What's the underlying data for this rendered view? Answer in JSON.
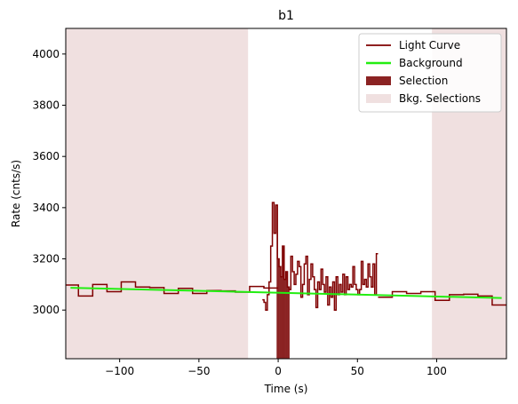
{
  "chart_data": {
    "type": "line",
    "title": "b1",
    "xlabel": "Time (s)",
    "ylabel": "Rate (cnts/s)",
    "xlim": [
      -134,
      144
    ],
    "ylim": [
      2810,
      4100
    ],
    "xticks": [
      -100,
      -50,
      0,
      50,
      100
    ],
    "yticks": [
      3000,
      3200,
      3400,
      3600,
      3800,
      4000
    ],
    "grid": false,
    "legend_position": "top-right",
    "colors": {
      "light_curve": "#7f0000",
      "background": "#22ee11",
      "selection": "#8b2323",
      "bkg_selection": "#f0e0e0"
    },
    "legend": [
      {
        "key": "light_curve",
        "label": "Light Curve",
        "style": "line"
      },
      {
        "key": "background",
        "label": "Background",
        "style": "line"
      },
      {
        "key": "selection",
        "label": "Selection",
        "style": "patch"
      },
      {
        "key": "bkg_selection",
        "label": "Bkg. Selections",
        "style": "patch"
      }
    ],
    "bkg_selections": [
      [
        -134,
        -19
      ],
      [
        97,
        144
      ]
    ],
    "selection": [
      [
        -1,
        7
      ]
    ],
    "background_line": {
      "x": [
        -131,
        141
      ],
      "y": [
        3087,
        3047
      ]
    },
    "light_curve": {
      "steps": [
        [
          -134,
          3098
        ],
        [
          -126,
          3055
        ],
        [
          -117,
          3100
        ],
        [
          -108,
          3072
        ],
        [
          -99,
          3110
        ],
        [
          -90,
          3090
        ],
        [
          -81,
          3088
        ],
        [
          -72,
          3065
        ],
        [
          -63,
          3085
        ],
        [
          -54,
          3065
        ],
        [
          -45,
          3076
        ],
        [
          -36,
          3075
        ],
        [
          -27,
          3070
        ],
        [
          -18,
          3092
        ],
        [
          -9,
          3086
        ],
        [
          0,
          3086
        ]
      ],
      "fine": {
        "start": -10,
        "values": [
          3040,
          3030,
          3000,
          3060,
          3110,
          3250,
          3420,
          3300,
          3410,
          3200,
          3170,
          3130,
          3250,
          3120,
          3150,
          3090,
          3080,
          3210,
          3150,
          3100,
          3140,
          3190,
          3170,
          3050,
          3100,
          3180,
          3210,
          3060,
          3120,
          3180,
          3130,
          3080,
          3010,
          3110,
          3080,
          3160,
          3100,
          3070,
          3130,
          3020,
          3090,
          3050,
          3110,
          3000,
          3130,
          3060,
          3100,
          3070,
          3140,
          3060,
          3130,
          3080,
          3100,
          3090,
          3170,
          3100,
          3080,
          3060,
          3080,
          3190,
          3100,
          3120,
          3090,
          3180,
          3130,
          3090,
          3180,
          3060,
          3220
        ],
        "end": 63
      },
      "tail_steps": [
        [
          63,
          3050
        ],
        [
          72,
          3072
        ],
        [
          81,
          3065
        ],
        [
          90,
          3072
        ],
        [
          99,
          3038
        ],
        [
          108,
          3060
        ],
        [
          117,
          3062
        ],
        [
          126,
          3055
        ],
        [
          135,
          3020
        ],
        [
          144,
          3020
        ]
      ]
    }
  }
}
